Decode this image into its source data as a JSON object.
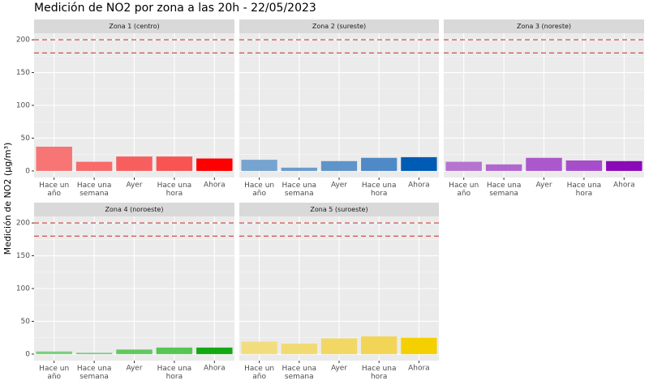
{
  "title": "Medición de NO2 por zona a las 20h - 22/05/2023",
  "y_label": "Medición de NO2 (µg/m³)",
  "chart_data": [
    {
      "type": "bar",
      "title": "Zona 1 (centro)",
      "categories": [
        "Hace un\naño",
        "Hace una\nsemana",
        "Ayer",
        "Hace una\nhora",
        "Ahora"
      ],
      "values": [
        37,
        14,
        22,
        22,
        19
      ],
      "colors": [
        "#f77575",
        "#f76b6b",
        "#f75f5f",
        "#f85454",
        "#ff0000"
      ],
      "ylim": [
        -10,
        210
      ],
      "yticks": [
        0,
        50,
        100,
        150,
        200
      ],
      "grid": true,
      "reference_lines": [
        200,
        180
      ],
      "reference_color": "#c8423a"
    },
    {
      "type": "bar",
      "title": "Zona 2 (sureste)",
      "categories": [
        "Hace un\naño",
        "Hace una\nsemana",
        "Ayer",
        "Hace una\nhora",
        "Ahora"
      ],
      "values": [
        17,
        5,
        15,
        20,
        21
      ],
      "colors": [
        "#76a3cf",
        "#6b9ccd",
        "#5f94ca",
        "#4f8ac6",
        "#005bb5"
      ],
      "ylim": [
        -10,
        210
      ],
      "yticks": [
        0,
        50,
        100,
        150,
        200
      ],
      "grid": true,
      "reference_lines": [
        200,
        180
      ],
      "reference_color": "#c8423a"
    },
    {
      "type": "bar",
      "title": "Zona 3 (noreste)",
      "categories": [
        "Hace un\naño",
        "Hace una\nsemana",
        "Ayer",
        "Hace una\nhora",
        "Ahora"
      ],
      "values": [
        14,
        10,
        20,
        16,
        15
      ],
      "colors": [
        "#b574d0",
        "#b066cf",
        "#ab58cc",
        "#a64ec9",
        "#8a0ab8"
      ],
      "ylim": [
        -10,
        210
      ],
      "yticks": [
        0,
        50,
        100,
        150,
        200
      ],
      "grid": true,
      "reference_lines": [
        200,
        180
      ],
      "reference_color": "#c8423a"
    },
    {
      "type": "bar",
      "title": "Zona 4 (noroeste)",
      "categories": [
        "Hace un\naño",
        "Hace una\nsemana",
        "Ayer",
        "Hace una\nhora",
        "Ahora"
      ],
      "values": [
        4,
        2,
        7,
        10,
        10
      ],
      "colors": [
        "#7ccf7c",
        "#70cc70",
        "#62c862",
        "#55c655",
        "#12a812"
      ],
      "ylim": [
        -10,
        210
      ],
      "yticks": [
        0,
        50,
        100,
        150,
        200
      ],
      "grid": true,
      "reference_lines": [
        200,
        180
      ],
      "reference_color": "#c8423a"
    },
    {
      "type": "bar",
      "title": "Zona 5 (suroeste)",
      "categories": [
        "Hace un\naño",
        "Hace una\nsemana",
        "Ayer",
        "Hace una\nhora",
        "Ahora"
      ],
      "values": [
        19,
        16,
        24,
        27,
        25
      ],
      "colors": [
        "#f2dd7e",
        "#f2da72",
        "#f2d764",
        "#f2d556",
        "#f5d000"
      ],
      "ylim": [
        -10,
        210
      ],
      "yticks": [
        0,
        50,
        100,
        150,
        200
      ],
      "grid": true,
      "reference_lines": [
        200,
        180
      ],
      "reference_color": "#c8423a"
    }
  ]
}
